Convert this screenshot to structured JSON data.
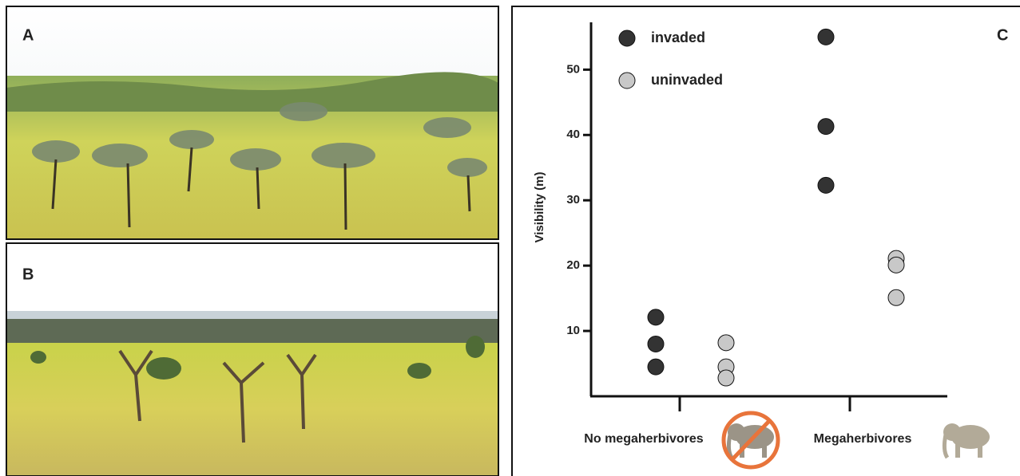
{
  "panels": [
    {
      "label": "A"
    },
    {
      "label": "B"
    }
  ],
  "chart_data": {
    "type": "strip",
    "panel_label": "C",
    "y_label": "Visibility (m)",
    "categories": [
      "No megaherbivores",
      "Megaherbivores"
    ],
    "series": [
      {
        "name": "invaded",
        "color": "#333333",
        "values": [
          [
            12.1,
            8.0,
            4.5
          ],
          [
            55.0,
            41.3,
            32.3
          ]
        ]
      },
      {
        "name": "uninvaded",
        "color": "#c8c8c8",
        "values": [
          [
            8.2,
            4.5,
            2.8
          ],
          [
            21.1,
            20.1,
            15.1
          ]
        ]
      }
    ],
    "ylim": [
      0,
      57
    ],
    "yticks": [
      10,
      20,
      30,
      40,
      50
    ],
    "legend": "upper left"
  }
}
